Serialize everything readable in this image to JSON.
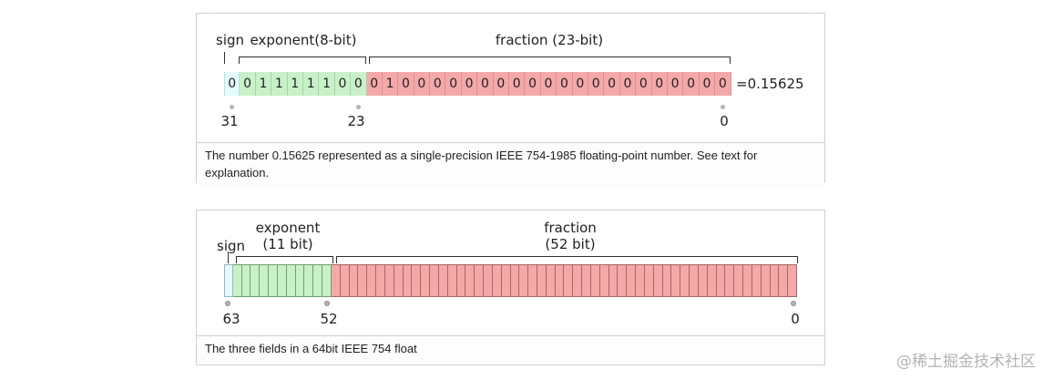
{
  "figure1": {
    "labels": {
      "sign": "sign",
      "exponent": "exponent(8-bit)",
      "fraction": "fraction (23-bit)"
    },
    "bits": {
      "sign": [
        "0"
      ],
      "exponent": [
        "0",
        "1",
        "1",
        "1",
        "1",
        "1",
        "0",
        "0"
      ],
      "fraction": [
        "0",
        "1",
        "0",
        "0",
        "0",
        "0",
        "0",
        "0",
        "0",
        "0",
        "0",
        "0",
        "0",
        "0",
        "0",
        "0",
        "0",
        "0",
        "0",
        "0",
        "0",
        "0",
        "0"
      ]
    },
    "result": "=0.15625",
    "markers": [
      "31",
      "23",
      "0"
    ],
    "caption": "The number 0.15625 represented as a single-precision IEEE 754-1985 floating-point number. See text for explanation."
  },
  "figure2": {
    "labels": {
      "sign": "sign",
      "exponent_line1": "exponent",
      "exponent_line2": "(11 bit)",
      "fraction_line1": "fraction",
      "fraction_line2": "(52 bit)"
    },
    "cells": {
      "sign": 1,
      "exponent": 11,
      "fraction": 52
    },
    "markers": [
      "63",
      "52",
      "0"
    ],
    "caption": "The three fields in a 64bit IEEE 754 float"
  },
  "colors": {
    "sign_fill": "#e6fbfd",
    "sign_border": "#b9dee5",
    "sign_border_dark": "#8fb9c2",
    "exponent_fill": "#c9f1c9",
    "exponent_border_light": "#a3d6a3",
    "exponent_border_dark": "#6f9f6f",
    "fraction_fill": "#f5a8a8",
    "fraction_border_light": "#dd8f8f",
    "fraction_border_dark": "#a56868"
  },
  "watermark": "@稀土掘金技术社区"
}
